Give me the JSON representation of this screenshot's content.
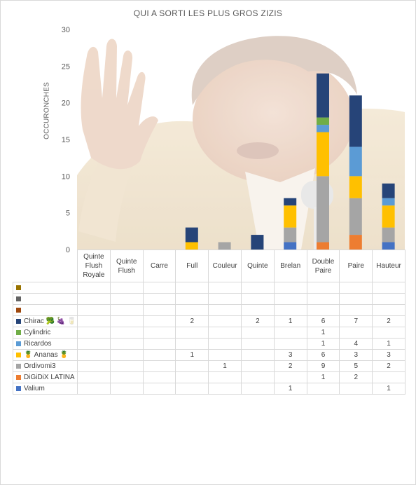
{
  "chart_data": {
    "type": "bar",
    "stacked": true,
    "title": "QUI A SORTI LES PLUS GROS ZIZIS",
    "xlabel": "",
    "ylabel": "OCCURONCHES",
    "ylim": [
      0,
      30
    ],
    "yticks": [
      "0",
      "5",
      "10",
      "15",
      "20",
      "25",
      "30"
    ],
    "grid": false,
    "legend": "data-table",
    "background": "photo of a laughing man in a beige suit raising his hand",
    "categories": [
      "Quinte Flush Royale",
      "Quinte Flush",
      "Carre",
      "Full",
      "Couleur",
      "Quinte",
      "Brelan",
      "Double Paire",
      "Paire",
      "Hauteur"
    ],
    "series": [
      {
        "name": "Valium",
        "color": "#4472C4",
        "values": [
          null,
          null,
          null,
          null,
          null,
          null,
          1,
          null,
          null,
          1
        ]
      },
      {
        "name": "DiGiDiX LATINA",
        "color": "#ED7D31",
        "values": [
          null,
          null,
          null,
          null,
          null,
          null,
          null,
          1,
          2,
          null
        ]
      },
      {
        "name": "Ordivomi3",
        "color": "#A5A5A5",
        "values": [
          null,
          null,
          null,
          null,
          1,
          null,
          2,
          9,
          5,
          2
        ]
      },
      {
        "name": "🍍 Ananas 🍍",
        "color": "#FFC000",
        "values": [
          null,
          null,
          null,
          1,
          null,
          null,
          3,
          6,
          3,
          3
        ]
      },
      {
        "name": "Ricardos",
        "color": "#5B9BD5",
        "values": [
          null,
          null,
          null,
          null,
          null,
          null,
          null,
          1,
          4,
          1
        ]
      },
      {
        "name": "Cylindric",
        "color": "#70AD47",
        "values": [
          null,
          null,
          null,
          null,
          null,
          null,
          null,
          1,
          null,
          null
        ]
      },
      {
        "name": "Chirac 🥦 🍇 🥛",
        "color": "#264478",
        "values": [
          null,
          null,
          null,
          2,
          null,
          2,
          1,
          6,
          7,
          2
        ]
      },
      {
        "name": "",
        "color": "#9E480E",
        "values": [
          null,
          null,
          null,
          null,
          null,
          null,
          null,
          null,
          null,
          null
        ]
      },
      {
        "name": "",
        "color": "#636363",
        "values": [
          null,
          null,
          null,
          null,
          null,
          null,
          null,
          null,
          null,
          null
        ]
      },
      {
        "name": "",
        "color": "#997300",
        "values": [
          null,
          null,
          null,
          null,
          null,
          null,
          null,
          null,
          null,
          null
        ]
      }
    ]
  }
}
